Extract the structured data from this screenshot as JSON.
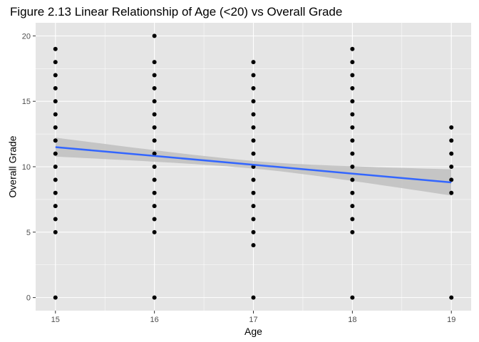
{
  "chart_data": {
    "type": "scatter",
    "title": "Figure 2.13 Linear Relationship of Age (<20) vs Overall Grade",
    "xlabel": "Age",
    "ylabel": "Overall Grade",
    "xlim": [
      14.8,
      19.2
    ],
    "ylim": [
      -1,
      21
    ],
    "x_ticks": [
      15,
      16,
      17,
      18,
      19
    ],
    "y_ticks": [
      0,
      5,
      10,
      15,
      20
    ],
    "grid": true,
    "colors": {
      "panel_bg": "#e5e5e5",
      "grid": "#ffffff",
      "points": "#000000",
      "fit_line": "#3366ff",
      "confidence_band": "#bfbfbf"
    },
    "points_by_age": [
      {
        "x": 15,
        "y": [
          0,
          5,
          6,
          7,
          8,
          9,
          10,
          11,
          12,
          13,
          14,
          15,
          16,
          17,
          18,
          19
        ]
      },
      {
        "x": 16,
        "y": [
          0,
          5,
          6,
          7,
          8,
          9,
          10,
          11,
          12,
          13,
          14,
          15,
          16,
          17,
          18,
          20
        ]
      },
      {
        "x": 17,
        "y": [
          0,
          4,
          5,
          6,
          7,
          8,
          9,
          10,
          11,
          12,
          13,
          14,
          15,
          16,
          17,
          18
        ]
      },
      {
        "x": 18,
        "y": [
          0,
          5,
          6,
          7,
          8,
          9,
          10,
          11,
          12,
          13,
          14,
          15,
          16,
          17,
          18,
          19
        ]
      },
      {
        "x": 19,
        "y": [
          0,
          8,
          9,
          10,
          11,
          12,
          13
        ]
      }
    ],
    "fit": {
      "method": "lm",
      "x": [
        15,
        19
      ],
      "y": [
        11.5,
        8.8
      ],
      "ci_lower": [
        10.8,
        7.8
      ],
      "ci_upper": [
        12.25,
        9.8
      ]
    }
  }
}
